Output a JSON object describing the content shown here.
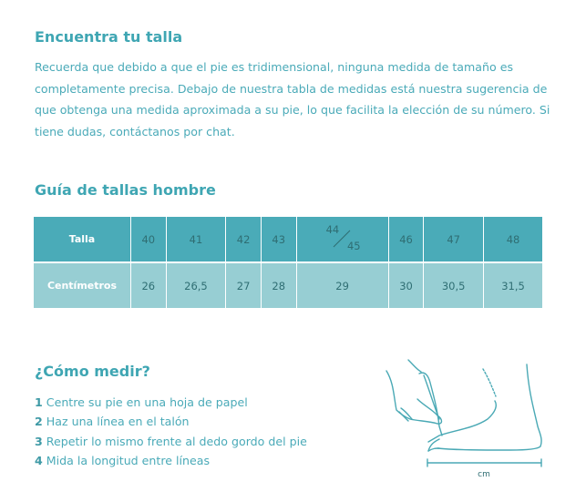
{
  "intro": {
    "title": "Encuentra tu talla",
    "text": "Recuerda que debido a que el pie es tridimensional, ninguna medida de tamaño es completamente precisa. Debajo de nuestra tabla de medidas está nuestra sugerencia de que obtenga una medida aproximada a su pie, lo que facilita la elección de su número. Si tiene dudas, contáctanos por chat."
  },
  "guide": {
    "title": "Guía de tallas hombre",
    "row_labels": [
      "Talla",
      "Centímetros"
    ],
    "sizes": [
      "40",
      "41",
      "42",
      "43",
      {
        "top": "44",
        "bottom": "45"
      },
      "46",
      "47",
      "48"
    ],
    "cm": [
      "26",
      "26,5",
      "27",
      "28",
      "29",
      "30",
      "30,5",
      "31,5"
    ]
  },
  "measure": {
    "title": "¿Cómo medir?",
    "steps": [
      {
        "n": "1",
        "text": "Centre su pie en una hoja de papel"
      },
      {
        "n": "2",
        "text": "Haz una línea en el talón"
      },
      {
        "n": "3",
        "text": "Repetir lo mismo frente al dedo gordo del pie"
      },
      {
        "n": "4",
        "text": "Mida la longitud entre líneas"
      }
    ],
    "unit_label": "cm"
  },
  "colors": {
    "accent": "#3fa6b3",
    "header_row": "#4aabb8",
    "data_row": "#97ced3"
  }
}
